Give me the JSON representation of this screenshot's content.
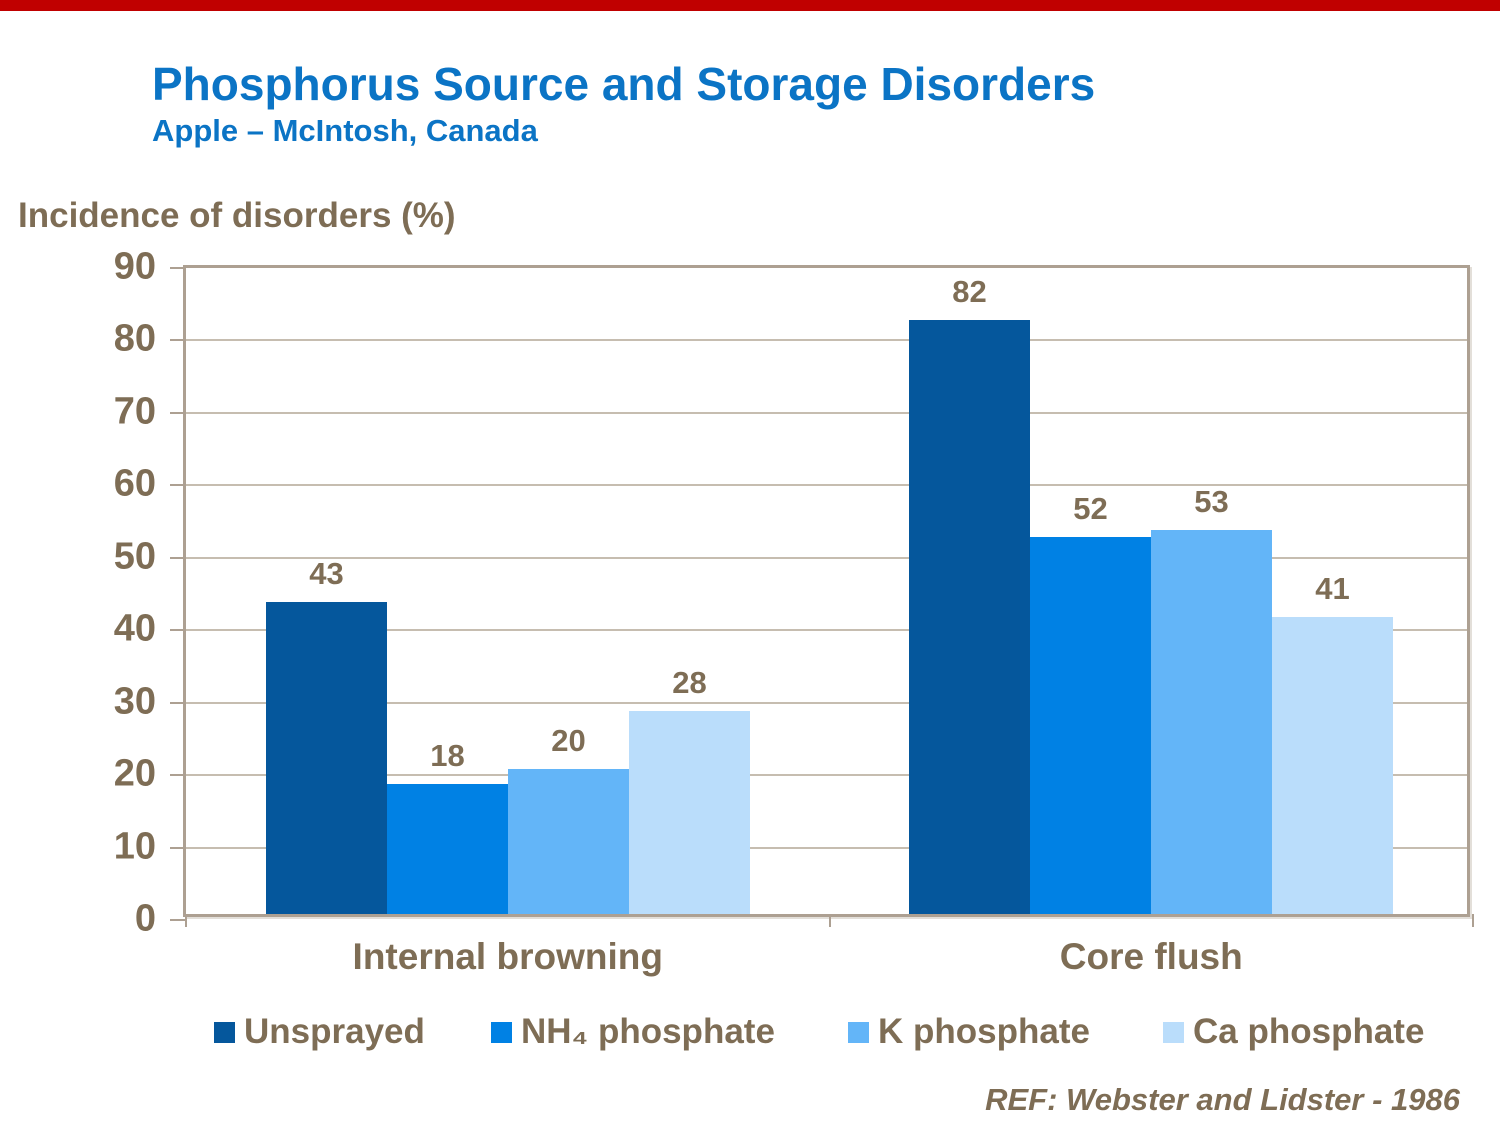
{
  "page": {
    "top_bar_color": "#C00000",
    "background": "#FFFFFF"
  },
  "header": {
    "title": "Phosphorus Source and Storage Disorders",
    "subtitle": "Apple – McIntosh, Canada",
    "title_color": "#0B74C5"
  },
  "axis_title": "Incidence of disorders (%)",
  "colors": {
    "text_brown": "#7E6D55",
    "frame": "#ADA092",
    "gridline": "#C6BDB0"
  },
  "chart_data": {
    "type": "bar",
    "title": "Phosphorus Source and Storage Disorders",
    "subtitle": "Apple – McIntosh, Canada",
    "xlabel": "",
    "ylabel": "Incidence of disorders (%)",
    "categories": [
      "Internal browning",
      "Core flush"
    ],
    "series": [
      {
        "name": "Unsprayed",
        "color": "#05579C",
        "values": [
          43,
          82
        ]
      },
      {
        "name": "NH₄ phosphate",
        "color": "#0081E4",
        "values": [
          18,
          52
        ]
      },
      {
        "name": "K phosphate",
        "color": "#63B5F8",
        "values": [
          20,
          53
        ]
      },
      {
        "name": "Ca phosphate",
        "color": "#BADDFB",
        "values": [
          28,
          41
        ]
      }
    ],
    "ylim": [
      0,
      90
    ],
    "ytick_step": 10,
    "yticks": [
      0,
      10,
      20,
      30,
      40,
      50,
      60,
      70,
      80,
      90
    ],
    "grid": true,
    "data_labels": true,
    "legend_position": "bottom"
  },
  "footer": {
    "reference": "REF: Webster and Lidster - 1986"
  }
}
